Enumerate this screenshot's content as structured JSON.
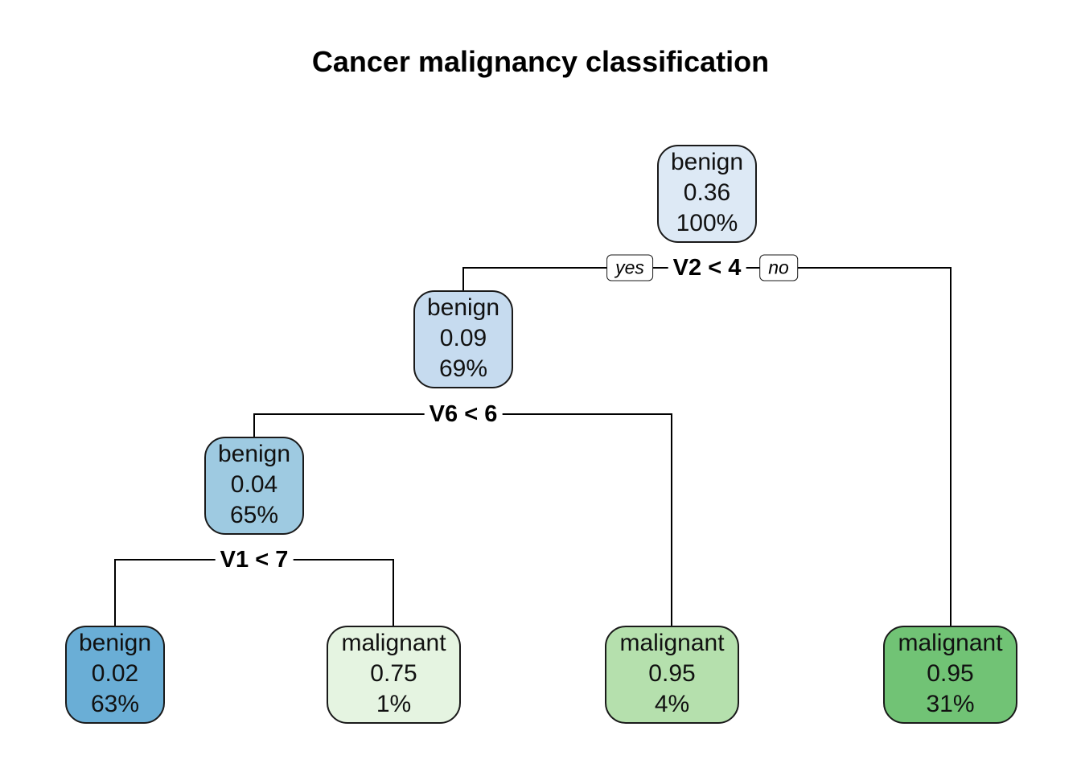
{
  "title": "Cancer malignancy classification",
  "branch_labels": {
    "yes": "yes",
    "no": "no"
  },
  "splits": {
    "root": "V2 < 4",
    "n2": "V6 < 6",
    "n3": "V1 < 7"
  },
  "nodes": {
    "root": {
      "class": "benign",
      "prob": "0.36",
      "pct": "100%",
      "color": "#dde9f5"
    },
    "n2": {
      "class": "benign",
      "prob": "0.09",
      "pct": "69%",
      "color": "#c6dbef"
    },
    "n3": {
      "class": "benign",
      "prob": "0.04",
      "pct": "65%",
      "color": "#9ecae1"
    },
    "leaf1": {
      "class": "benign",
      "prob": "0.02",
      "pct": "63%",
      "color": "#6aaed6"
    },
    "leaf2": {
      "class": "malignant",
      "prob": "0.75",
      "pct": "1%",
      "color": "#e5f4e1"
    },
    "leaf3": {
      "class": "malignant",
      "prob": "0.95",
      "pct": "4%",
      "color": "#b5e0ad"
    },
    "leaf4": {
      "class": "malignant",
      "prob": "0.95",
      "pct": "31%",
      "color": "#71c375"
    }
  }
}
